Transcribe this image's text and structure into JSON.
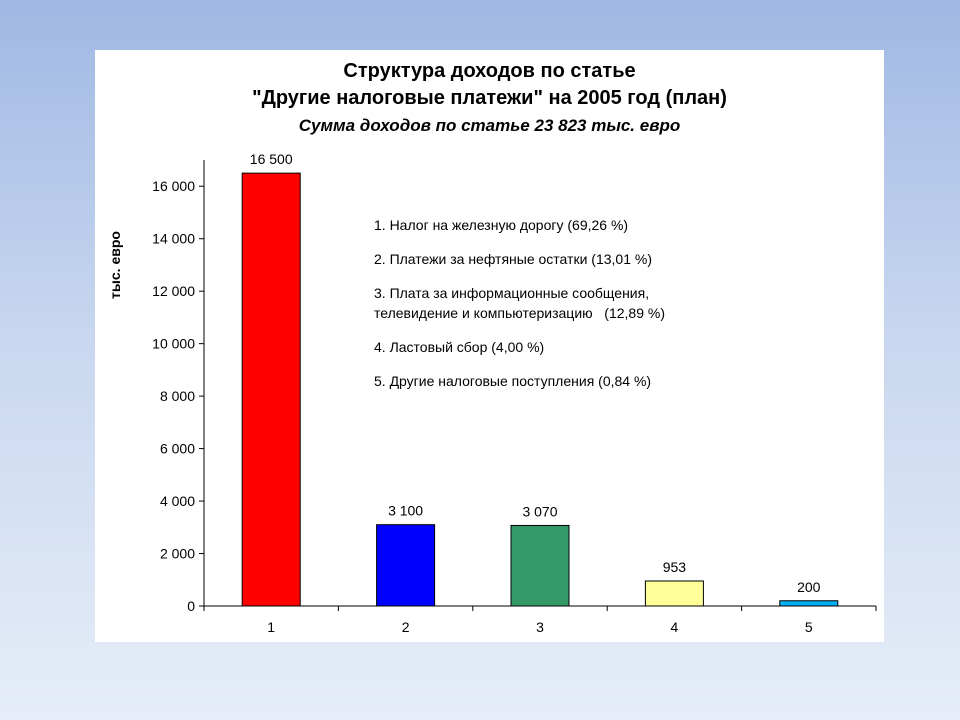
{
  "chart_data": {
    "type": "bar",
    "title": "Структура доходов по статье",
    "title_line2": "\"Другие налоговые платежи\" на 2005 год (план)",
    "subtitle": "Сумма доходов по статье 23 823 тыс. евро",
    "ylabel": "тыс. евро",
    "xlabel": "",
    "ylim": [
      0,
      17000
    ],
    "yticks": [
      0,
      2000,
      4000,
      6000,
      8000,
      10000,
      12000,
      14000,
      16000
    ],
    "ytick_labels": [
      "0",
      "2 000",
      "4 000",
      "6 000",
      "8 000",
      "10 000",
      "12 000",
      "14 000",
      "16 000"
    ],
    "categories": [
      "1",
      "2",
      "3",
      "4",
      "5"
    ],
    "values": [
      16500,
      3100,
      3070,
      953,
      200
    ],
    "value_labels": [
      "16 500",
      "3 100",
      "3 070",
      "953",
      "200"
    ],
    "colors": [
      "#ff0000",
      "#0000ff",
      "#339966",
      "#ffff99",
      "#00b0f0"
    ],
    "grid": false,
    "legend": "none"
  },
  "notes": [
    "1. Налог на железную дорогу (69,26 %)",
    "2. Платежи за нефтяные остатки (13,01 %)",
    "3. Плата за информационные сообщения,\nтелевидение и компьютеризацию   (12,89 %)",
    "4. Ластовый сбор (4,00 %)",
    "5. Другие налоговые поступления (0,84 %)"
  ]
}
